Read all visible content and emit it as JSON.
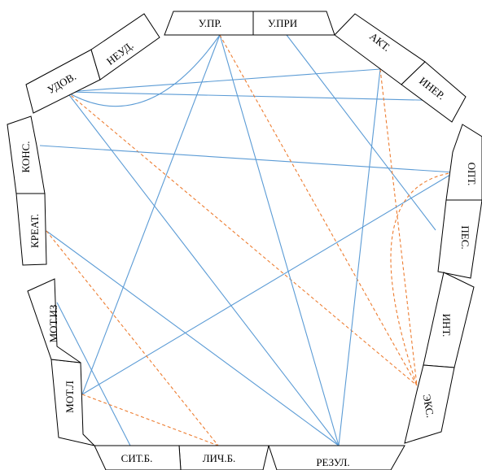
{
  "colors": {
    "positive_link": "#5b9bd5",
    "negative_link": "#ed7d31",
    "outline": "#000000"
  },
  "legend_types": {
    "positive": "solid",
    "negative": "dashed"
  },
  "nodes": {
    "upr": "У.ПР.",
    "upri": "У.ПРИ",
    "akt": "АКТ.",
    "iner": "ИНЕР.",
    "opt": "ОПТ.",
    "pes": "ПЕС.",
    "int": "ИНТ.",
    "eks": "ЭКС.",
    "rezul": "РЕЗУЛ.",
    "lichb": "ЛИЧ.Б.",
    "sitb": "СИТ.Б.",
    "motl": "МОТ.Л",
    "motiz": "МОТ.ИЗ",
    "kreat": "КРЕАТ.",
    "kons": "КОНС.",
    "udov": "УДОВ.",
    "neud": "НЕУД."
  },
  "links": [
    {
      "from": "udov",
      "to": "akt",
      "type": "positive"
    },
    {
      "from": "udov",
      "to": "upr",
      "type": "positive"
    },
    {
      "from": "udov",
      "to": "iner",
      "type": "positive"
    },
    {
      "from": "udov",
      "to": "rezul",
      "type": "positive"
    },
    {
      "from": "udov",
      "to": "eks",
      "type": "negative"
    },
    {
      "from": "kons",
      "to": "opt",
      "type": "positive"
    },
    {
      "from": "upr",
      "to": "motl",
      "type": "positive"
    },
    {
      "from": "upr",
      "to": "rezul",
      "type": "positive"
    },
    {
      "from": "upr",
      "to": "eks",
      "type": "negative"
    },
    {
      "from": "upri",
      "to": "pes",
      "type": "positive"
    },
    {
      "from": "akt",
      "to": "rezul",
      "type": "positive"
    },
    {
      "from": "akt",
      "to": "eks",
      "type": "negative"
    },
    {
      "from": "opt",
      "to": "motl",
      "type": "positive"
    },
    {
      "from": "opt",
      "to": "eks",
      "type": "negative"
    },
    {
      "from": "kreat",
      "to": "rezul",
      "type": "positive"
    },
    {
      "from": "kreat",
      "to": "lichb",
      "type": "negative"
    },
    {
      "from": "motiz",
      "to": "sitb",
      "type": "positive"
    },
    {
      "from": "motl",
      "to": "lichb",
      "type": "negative"
    }
  ]
}
